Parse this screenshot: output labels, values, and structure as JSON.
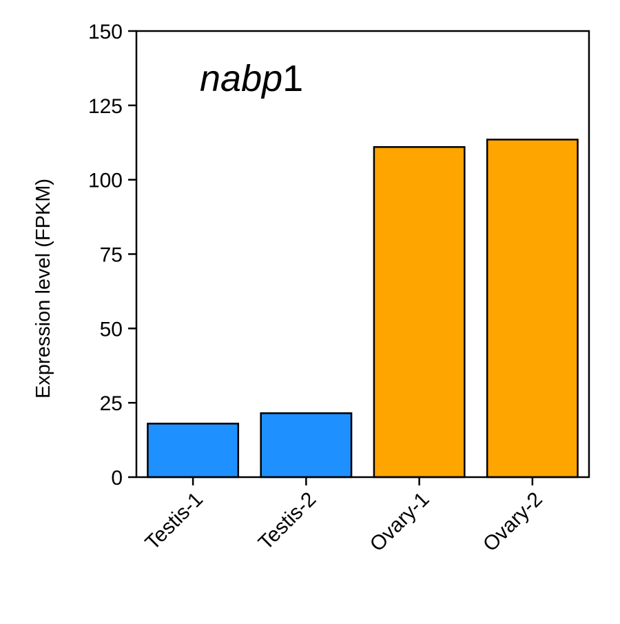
{
  "chart_data": {
    "type": "bar",
    "categories": [
      "Testis-1",
      "Testis-2",
      "Ovary-1",
      "Ovary-2"
    ],
    "values": [
      18,
      21.5,
      111,
      113.5
    ],
    "bar_colors": [
      "#1E90FF",
      "#1E90FF",
      "#FFA500",
      "#FFA500"
    ],
    "edge_color": "#000000",
    "title": "",
    "annotation": {
      "italic_text": "nabp",
      "normal_text": "1",
      "placement": "top-left inside plot"
    },
    "xlabel": "",
    "ylabel": "Expression level (FPKM)",
    "ylim": [
      0,
      150
    ],
    "yticks": [
      0,
      25,
      50,
      75,
      100,
      125,
      150
    ],
    "grid": false,
    "legend": "none",
    "xtick_rotation_deg": 45
  }
}
